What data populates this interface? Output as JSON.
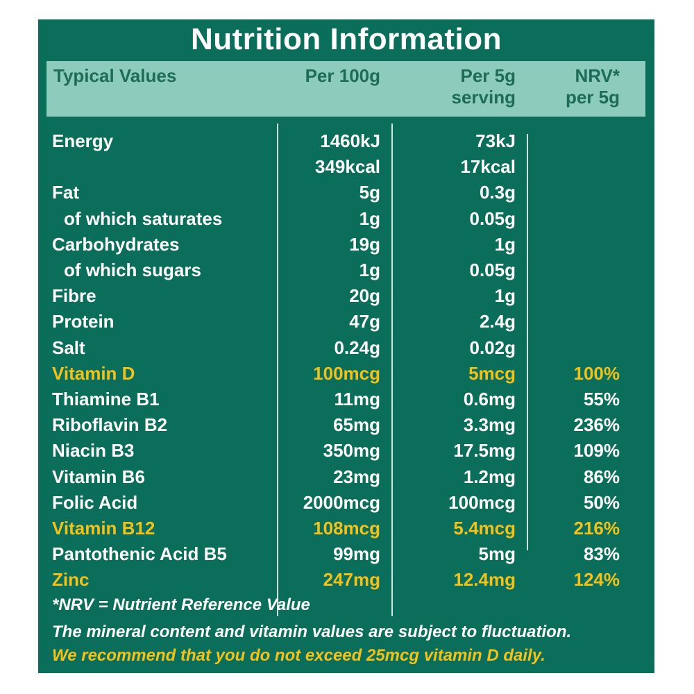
{
  "title": "Nutrition Information",
  "header": {
    "typical_values": "Typical Values",
    "per100g": "Per 100g",
    "per5g_line1": "Per 5g",
    "per5g_line2": "serving",
    "nrv_line1": "NRV*",
    "nrv_line2": "per 5g"
  },
  "colors": {
    "background": "#0b6e5a",
    "header_band": "#8dccbc",
    "highlight": "#f2c21b",
    "text": "#ffffff"
  },
  "rows": [
    {
      "label": "Energy",
      "per100g": "1460kJ",
      "per5g": "73kJ",
      "nrv": "",
      "highlight": false,
      "sub": false
    },
    {
      "label": "",
      "per100g": "349kcal",
      "per5g": "17kcal",
      "nrv": "",
      "highlight": false,
      "sub": false
    },
    {
      "label": "Fat",
      "per100g": "5g",
      "per5g": "0.3g",
      "nrv": "",
      "highlight": false,
      "sub": false
    },
    {
      "label": "of which saturates",
      "per100g": "1g",
      "per5g": "0.05g",
      "nrv": "",
      "highlight": false,
      "sub": true
    },
    {
      "label": "Carbohydrates",
      "per100g": "19g",
      "per5g": "1g",
      "nrv": "",
      "highlight": false,
      "sub": false
    },
    {
      "label": "of which sugars",
      "per100g": "1g",
      "per5g": "0.05g",
      "nrv": "",
      "highlight": false,
      "sub": true
    },
    {
      "label": "Fibre",
      "per100g": "20g",
      "per5g": "1g",
      "nrv": "",
      "highlight": false,
      "sub": false
    },
    {
      "label": "Protein",
      "per100g": "47g",
      "per5g": "2.4g",
      "nrv": "",
      "highlight": false,
      "sub": false
    },
    {
      "label": "Salt",
      "per100g": "0.24g",
      "per5g": "0.02g",
      "nrv": "",
      "highlight": false,
      "sub": false
    },
    {
      "label": "Vitamin D",
      "per100g": "100mcg",
      "per5g": "5mcg",
      "nrv": "100%",
      "highlight": true,
      "sub": false
    },
    {
      "label": "Thiamine B1",
      "per100g": "11mg",
      "per5g": "0.6mg",
      "nrv": "55%",
      "highlight": false,
      "sub": false
    },
    {
      "label": "Riboflavin B2",
      "per100g": "65mg",
      "per5g": "3.3mg",
      "nrv": "236%",
      "highlight": false,
      "sub": false
    },
    {
      "label": "Niacin B3",
      "per100g": "350mg",
      "per5g": "17.5mg",
      "nrv": "109%",
      "highlight": false,
      "sub": false
    },
    {
      "label": "Vitamin B6",
      "per100g": "23mg",
      "per5g": "1.2mg",
      "nrv": "86%",
      "highlight": false,
      "sub": false
    },
    {
      "label": "Folic Acid",
      "per100g": "2000mcg",
      "per5g": "100mcg",
      "nrv": "50%",
      "highlight": false,
      "sub": false
    },
    {
      "label": "Vitamin B12",
      "per100g": "108mcg",
      "per5g": "5.4mcg",
      "nrv": "216%",
      "highlight": true,
      "sub": false
    },
    {
      "label": "Pantothenic Acid B5",
      "per100g": "99mg",
      "per5g": "5mg",
      "nrv": "83%",
      "highlight": false,
      "sub": false
    },
    {
      "label": "Zinc",
      "per100g": "247mg",
      "per5g": "12.4mg",
      "nrv": "124%",
      "highlight": true,
      "sub": false
    }
  ],
  "footer": {
    "nrv_note": "*NRV = Nutrient Reference Value",
    "fluctuation_note": "The mineral content and vitamin values are subject to fluctuation.",
    "vitamin_d_warning": "We recommend that you do not exceed 25mcg vitamin D daily."
  }
}
